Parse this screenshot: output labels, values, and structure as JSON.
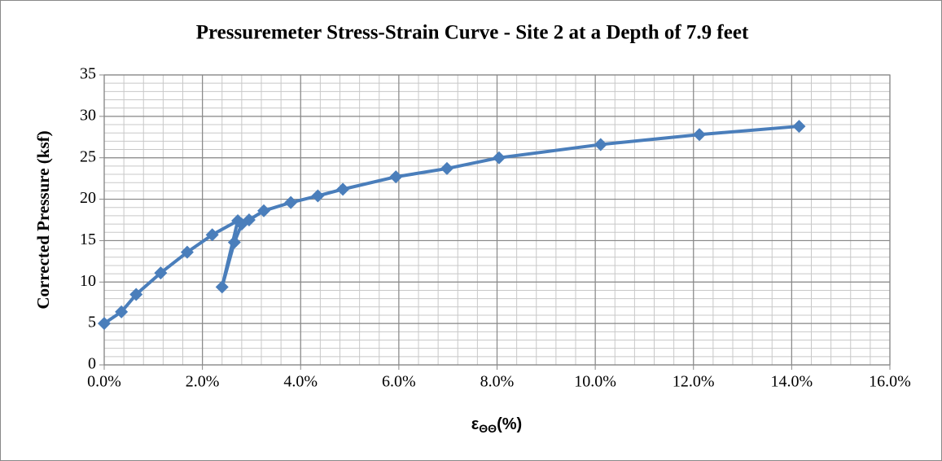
{
  "chart_data": {
    "type": "line",
    "title": "Pressuremeter Stress-Strain Curve - Site 2 at a Depth of 7.9 feet",
    "ylabel": "Corrected Pressure (ksf)",
    "xlabel": "ε",
    "xlabel_sub": "ΘΘ",
    "xlabel_suffix": "(%)",
    "series": [
      {
        "name": "Corrected Pressure",
        "color": "#4a7ebb",
        "x": [
          0,
          0.35,
          0.65,
          1.15,
          1.69,
          2.2,
          2.72,
          2.4,
          2.65,
          2.8,
          2.95,
          3.25,
          3.8,
          4.35,
          4.86,
          5.94,
          6.98,
          8.04,
          10.11,
          12.12,
          14.15
        ],
        "values": [
          5.0,
          6.4,
          8.5,
          11.1,
          13.6,
          15.7,
          17.4,
          9.4,
          14.8,
          17.0,
          17.5,
          18.6,
          19.6,
          20.4,
          21.2,
          22.7,
          23.7,
          25.0,
          26.6,
          27.8,
          28.8
        ]
      }
    ],
    "xlim": [
      0,
      16
    ],
    "xticks": [
      {
        "value": 0,
        "label": "0.0%"
      },
      {
        "value": 2,
        "label": "2.0%"
      },
      {
        "value": 4,
        "label": "4.0%"
      },
      {
        "value": 6,
        "label": "6.0%"
      },
      {
        "value": 8,
        "label": "8.0%"
      },
      {
        "value": 10,
        "label": "10.0%"
      },
      {
        "value": 12,
        "label": "12.0%"
      },
      {
        "value": 14,
        "label": "14.0%"
      },
      {
        "value": 16,
        "label": "16.0%"
      }
    ],
    "ylim": [
      0,
      35
    ],
    "yticks": [
      0,
      5,
      10,
      15,
      20,
      25,
      30,
      35
    ],
    "grid": true,
    "minor_grid_step": {
      "x": 0.4,
      "y": 1
    }
  }
}
